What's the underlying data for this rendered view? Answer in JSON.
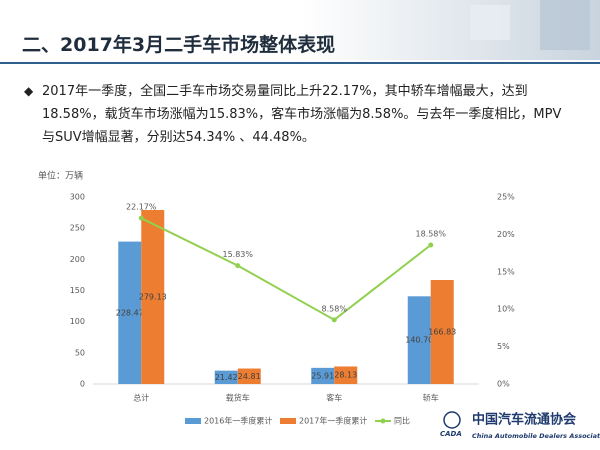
{
  "header": {
    "title": "二、2017年3月二手车市场整体表现"
  },
  "body": {
    "text": "2017年一季度，全国二手车市场交易量同比上升22.17%，其中轿车增幅最大，达到18.58%，载货车市场涨幅为15.83%，客车市场涨幅为8.58%。与去年一季度相比，MPV与SUV增幅显著，分别达54.34% 、44.48%。"
  },
  "logo": {
    "name": "中国汽车流通协会",
    "english": "China Automobile Dealers Association",
    "abbr": "CADA"
  },
  "chart_data": {
    "type": "bar",
    "unit": "单位：万辆",
    "categories": [
      "总计",
      "载货车",
      "客车",
      "轿车"
    ],
    "series": [
      {
        "name": "2016年一季度累计",
        "color": "#5b9bd5",
        "values": [
          228.47,
          21.42,
          25.91,
          140.7
        ],
        "value_labels": [
          "228.47",
          "21.42",
          "25.91",
          "140.70"
        ]
      },
      {
        "name": "2017年一季度累计",
        "color": "#ed7d31",
        "values": [
          279.13,
          24.81,
          28.13,
          166.83
        ]
      },
      {
        "name": "同比",
        "color": "#92d050",
        "type": "line",
        "axis": "y2",
        "values": [
          22.17,
          15.83,
          8.58,
          18.58
        ],
        "value_labels": [
          "22.17%",
          "15.83%",
          "8.58%",
          "18.58%"
        ]
      }
    ],
    "ylim": [
      0,
      300
    ],
    "yticks": [
      0,
      50,
      100,
      150,
      200,
      250,
      300
    ],
    "y2lim": [
      0,
      25
    ],
    "y2ticks": [
      {
        "value": 0,
        "label": "0%"
      },
      {
        "value": 5,
        "label": "5%"
      },
      {
        "value": 10,
        "label": "10%"
      },
      {
        "value": 15,
        "label": "15%"
      },
      {
        "value": 20,
        "label": "20%"
      },
      {
        "value": 25,
        "label": "25%"
      }
    ]
  }
}
